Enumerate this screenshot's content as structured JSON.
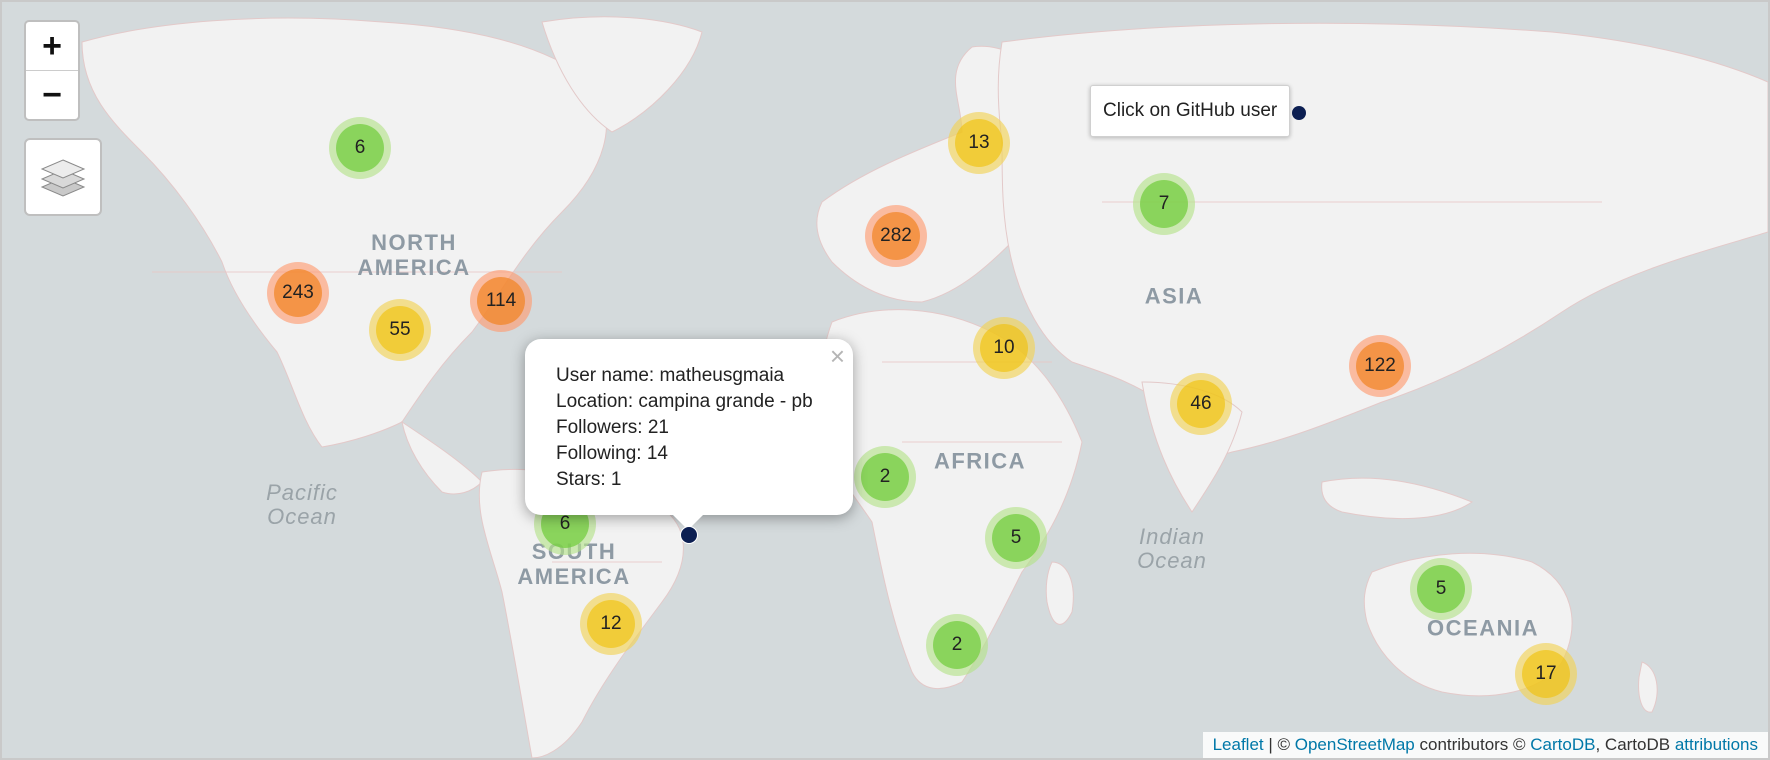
{
  "map": {
    "colors": {
      "ocean": "#d4dadc",
      "land": "#f2f2f2",
      "small_cluster": "#6ecc39",
      "medium_cluster": "#f0c20c",
      "large_cluster": "#f18017",
      "marker": "#0c1f52"
    },
    "controls": {
      "zoom_in": "+",
      "zoom_out": "−",
      "layers_icon": "layers-icon"
    },
    "region_labels": {
      "north_america": "NORTH\nAMERICA",
      "south_america": "SOUTH\nAMERICA",
      "africa": "AFRICA",
      "asia": "ASIA",
      "oceania": "OCEANIA",
      "pacific_ocean": "Pacific\nOcean",
      "indian_ocean": "Indian\nOcean"
    },
    "clusters": [
      {
        "count": "6",
        "size": "small"
      },
      {
        "count": "243",
        "size": "large"
      },
      {
        "count": "55",
        "size": "medium"
      },
      {
        "count": "114",
        "size": "large"
      },
      {
        "count": "13",
        "size": "medium"
      },
      {
        "count": "282",
        "size": "large"
      },
      {
        "count": "7",
        "size": "small"
      },
      {
        "count": "10",
        "size": "medium"
      },
      {
        "count": "122",
        "size": "large"
      },
      {
        "count": "46",
        "size": "medium"
      },
      {
        "count": "2",
        "size": "small"
      },
      {
        "count": "5",
        "size": "small"
      },
      {
        "count": "6",
        "size": "small"
      },
      {
        "count": "12",
        "size": "medium"
      },
      {
        "count": "2",
        "size": "small"
      },
      {
        "count": "5",
        "size": "small"
      },
      {
        "count": "17",
        "size": "medium"
      }
    ],
    "tooltip": "Click on GitHub user",
    "popup": {
      "close": "×",
      "user_name": "User name: matheusgmaia",
      "location": "Location: campina grande - pb",
      "followers": "Followers: 21",
      "following": "Following: 14",
      "stars": "Stars: 1"
    },
    "attribution": {
      "leaflet": "Leaflet",
      "sep1": " | © ",
      "osm": "OpenStreetMap",
      "text2": " contributors © ",
      "cartodb": "CartoDB",
      "text3": ", CartoDB ",
      "attributions": "attributions"
    }
  }
}
